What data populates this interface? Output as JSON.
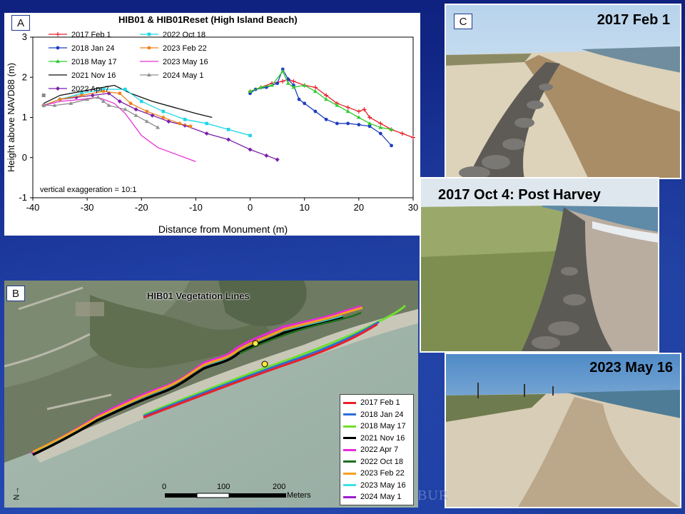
{
  "panelA": {
    "letter": "A",
    "title": "HIB01 & HIB01Reset (High Island Beach)",
    "annotation": "vertical exaggeration = 10:1",
    "chart_data": {
      "type": "line",
      "title": "HIB01 & HIB01Reset (High Island Beach)",
      "xlabel": "Distance from Monument (m)",
      "ylabel": "Height above NAVD88 (m)",
      "xlim": [
        -40,
        30
      ],
      "ylim": [
        -1,
        3
      ],
      "xticks": [
        "-40",
        "-30",
        "-20",
        "-10",
        "0",
        "10",
        "20",
        "30"
      ],
      "yticks": [
        "-1",
        "0",
        "1",
        "2",
        "3"
      ],
      "legend_position": "top-left",
      "grid": false,
      "series": [
        {
          "name": "2017 Feb 1",
          "color": "#e8202a",
          "marker": "+",
          "values": [
            [
              0,
              1.65
            ],
            [
              2,
              1.75
            ],
            [
              4,
              1.85
            ],
            [
              6,
              1.9
            ],
            [
              7,
              1.95
            ],
            [
              8,
              1.9
            ],
            [
              10,
              1.8
            ],
            [
              12,
              1.75
            ],
            [
              14,
              1.55
            ],
            [
              16,
              1.35
            ],
            [
              18,
              1.25
            ],
            [
              20,
              1.15
            ],
            [
              21,
              1.2
            ],
            [
              22,
              1.0
            ],
            [
              24,
              0.85
            ],
            [
              26,
              0.7
            ],
            [
              28,
              0.6
            ],
            [
              30,
              0.5
            ]
          ]
        },
        {
          "name": "2018 Jan 24",
          "color": "#1f3fbf",
          "marker": "o",
          "values": [
            [
              0,
              1.6
            ],
            [
              1,
              1.7
            ],
            [
              3,
              1.75
            ],
            [
              5,
              1.85
            ],
            [
              6,
              2.2
            ],
            [
              7,
              1.95
            ],
            [
              8,
              1.8
            ],
            [
              9,
              1.45
            ],
            [
              10,
              1.35
            ],
            [
              12,
              1.15
            ],
            [
              14,
              0.95
            ],
            [
              16,
              0.85
            ],
            [
              18,
              0.85
            ],
            [
              20,
              0.82
            ],
            [
              22,
              0.78
            ],
            [
              24,
              0.6
            ],
            [
              26,
              0.3
            ]
          ]
        },
        {
          "name": "2018 May 17",
          "color": "#2ecc2e",
          "marker": "^",
          "values": [
            [
              0,
              1.65
            ],
            [
              2,
              1.75
            ],
            [
              4,
              1.8
            ],
            [
              6,
              2.15
            ],
            [
              7,
              1.85
            ],
            [
              8,
              1.75
            ],
            [
              10,
              1.8
            ],
            [
              12,
              1.65
            ],
            [
              14,
              1.45
            ],
            [
              16,
              1.3
            ],
            [
              18,
              1.15
            ],
            [
              20,
              1.0
            ],
            [
              22,
              0.85
            ],
            [
              24,
              0.75
            ],
            [
              26,
              0.7
            ]
          ]
        },
        {
          "name": "2021 Nov 16",
          "color": "#111111",
          "marker": "none",
          "values": [
            [
              -38,
              1.35
            ],
            [
              -35,
              1.55
            ],
            [
              -31,
              1.65
            ],
            [
              -27,
              1.75
            ],
            [
              -25,
              1.8
            ],
            [
              -22,
              1.6
            ],
            [
              -18,
              1.4
            ],
            [
              -14,
              1.25
            ],
            [
              -10,
              1.1
            ],
            [
              -7,
              1.0
            ]
          ]
        },
        {
          "name": "2022 Apr 7",
          "color": "#7a1fa8",
          "marker": "d",
          "values": [
            [
              -38,
              1.3
            ],
            [
              -35,
              1.45
            ],
            [
              -32,
              1.5
            ],
            [
              -29,
              1.55
            ],
            [
              -26,
              1.6
            ],
            [
              -24,
              1.4
            ],
            [
              -21,
              1.2
            ],
            [
              -18,
              1.05
            ],
            [
              -15,
              0.9
            ],
            [
              -12,
              0.8
            ],
            [
              -8,
              0.6
            ],
            [
              -4,
              0.45
            ],
            [
              0,
              0.2
            ],
            [
              3,
              0.05
            ],
            [
              5,
              -0.05
            ]
          ]
        },
        {
          "name": "2022 Oct 18",
          "color": "#1fd6e8",
          "marker": "s",
          "values": [
            [
              -38,
              1.3
            ],
            [
              -35,
              1.45
            ],
            [
              -31,
              1.6
            ],
            [
              -27,
              1.7
            ],
            [
              -23,
              1.7
            ],
            [
              -20,
              1.4
            ],
            [
              -16,
              1.15
            ],
            [
              -12,
              0.95
            ],
            [
              -8,
              0.85
            ],
            [
              -4,
              0.7
            ],
            [
              0,
              0.55
            ]
          ]
        },
        {
          "name": "2023 Feb 22",
          "color": "#f0821e",
          "marker": "o",
          "values": [
            [
              -38,
              1.3
            ],
            [
              -35,
              1.45
            ],
            [
              -31,
              1.55
            ],
            [
              -27,
              1.65
            ],
            [
              -24,
              1.6
            ],
            [
              -22,
              1.35
            ],
            [
              -19,
              1.15
            ],
            [
              -16,
              1.0
            ],
            [
              -13,
              0.85
            ],
            [
              -11,
              0.78
            ]
          ]
        },
        {
          "name": "2023 May 16",
          "color": "#e830d8",
          "marker": "none",
          "values": [
            [
              -38,
              1.3
            ],
            [
              -35,
              1.4
            ],
            [
              -31,
              1.45
            ],
            [
              -28,
              1.5
            ],
            [
              -25,
              1.35
            ],
            [
              -23,
              1.1
            ],
            [
              -20,
              0.55
            ],
            [
              -17,
              0.25
            ],
            [
              -13,
              0.05
            ],
            [
              -10,
              -0.1
            ]
          ]
        },
        {
          "name": "2024 May 1",
          "color": "#909090",
          "marker": "^",
          "values": [
            [
              -38,
              1.3
            ],
            [
              -36,
              1.3
            ],
            [
              -33,
              1.35
            ],
            [
              -30,
              1.45
            ],
            [
              -28,
              1.5
            ],
            [
              -27,
              1.4
            ],
            [
              -26,
              1.3
            ],
            [
              -23,
              1.2
            ],
            [
              -21,
              1.05
            ],
            [
              -19,
              0.9
            ],
            [
              -17,
              0.75
            ]
          ]
        }
      ]
    }
  },
  "panelB": {
    "letter": "B",
    "map_title": "HIB01 Vegetation Lines",
    "scalebar": {
      "ticks": [
        "0",
        "100",
        "200"
      ],
      "unit": "Meters"
    },
    "north": "N",
    "legend": [
      {
        "label": "2017 Feb 1",
        "color": "#e8202a"
      },
      {
        "label": "2018 Jan 24",
        "color": "#2a6fd6"
      },
      {
        "label": "2018 May 17",
        "color": "#6fe02e"
      },
      {
        "label": "2021 Nov 16",
        "color": "#000000"
      },
      {
        "label": "2022 Apr 7",
        "color": "#e82ad8"
      },
      {
        "label": "2022 Oct 18",
        "color": "#1e6e1e"
      },
      {
        "label": "2023 Feb 22",
        "color": "#f5a21e"
      },
      {
        "label": "2023 May 16",
        "color": "#3ee0e8"
      },
      {
        "label": "2024 May 1",
        "color": "#9a1fd0"
      }
    ]
  },
  "panelC": {
    "letter": "C",
    "photos": [
      {
        "caption": "2017 Feb 1"
      },
      {
        "caption": "2017 Oct 4: Post Harvey"
      },
      {
        "caption": "2023 May 16"
      }
    ]
  },
  "watermark": "BUR"
}
